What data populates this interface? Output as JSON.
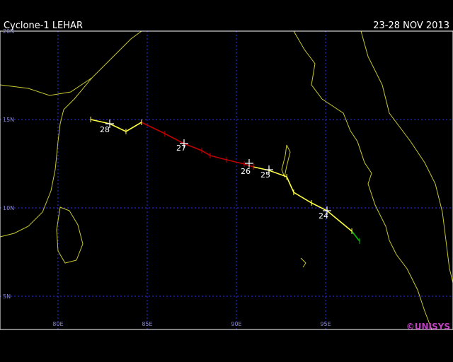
{
  "title": "Cyclone-1 LEHAR",
  "date": "23-28 NOV 2013",
  "credit": "©UNISYS",
  "map": {
    "xlim": [
      76.75,
      102.14
    ],
    "ylim": [
      3.12,
      20
    ],
    "xticks": [
      {
        "value": 80,
        "label": "80E"
      },
      {
        "value": 85,
        "label": "85E"
      },
      {
        "value": 90,
        "label": "90E"
      },
      {
        "value": 95,
        "label": "95E"
      }
    ],
    "yticks": [
      {
        "value": 20,
        "label": "20N"
      },
      {
        "value": 15,
        "label": "15N"
      },
      {
        "value": 10,
        "label": "10N"
      },
      {
        "value": 5,
        "label": "5N"
      }
    ],
    "track": [
      {
        "color": "#00c000",
        "lon": [
          96.9,
          96.47
        ],
        "lat": [
          8.12,
          8.68
        ]
      },
      {
        "color": "#ffff40",
        "lon": [
          96.47,
          95.08,
          94.21,
          93.21,
          92.82,
          91.83,
          90.95
        ],
        "lat": [
          8.68,
          9.84,
          10.28,
          10.88,
          11.76,
          12.12,
          12.32
        ]
      },
      {
        "color": "#c00000",
        "lon": [
          90.95,
          90.44,
          89.44,
          88.53,
          88.06,
          87.06,
          85.99,
          84.68
        ],
        "lat": [
          12.32,
          12.48,
          12.72,
          12.96,
          13.24,
          13.64,
          14.2,
          14.84
        ]
      },
      {
        "color": "#ffff40",
        "lon": [
          84.68,
          83.81,
          82.9,
          81.83
        ],
        "lat": [
          14.84,
          14.32,
          14.76,
          15.0
        ]
      }
    ],
    "day_labels": [
      "24",
      "25",
      "26",
      "27",
      "28"
    ]
  }
}
